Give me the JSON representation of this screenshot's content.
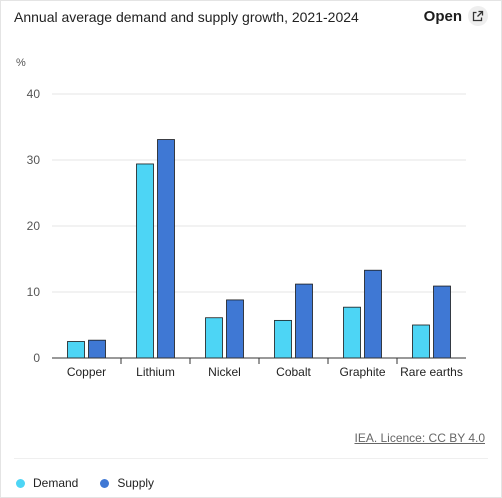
{
  "header": {
    "title": "Annual average demand and supply growth, 2021-2024",
    "open_label": "Open",
    "open_icon": "external-link-icon"
  },
  "source": "IEA. Licence: CC BY 4.0",
  "colors": {
    "demand": "#4dd5f5",
    "supply": "#3f78d4"
  },
  "chart_data": {
    "type": "bar",
    "unit_label": "%",
    "categories": [
      "Copper",
      "Lithium",
      "Nickel",
      "Cobalt",
      "Graphite",
      "Rare earths"
    ],
    "series": [
      {
        "name": "Demand",
        "values": [
          2.5,
          29.4,
          6.1,
          5.7,
          7.7,
          5.0
        ]
      },
      {
        "name": "Supply",
        "values": [
          2.7,
          33.1,
          8.8,
          11.2,
          13.3,
          10.9
        ]
      }
    ],
    "yticks": [
      0,
      10,
      20,
      30,
      40
    ],
    "ylim": [
      0,
      40
    ],
    "grid": true,
    "legend_position": "bottom-left"
  }
}
